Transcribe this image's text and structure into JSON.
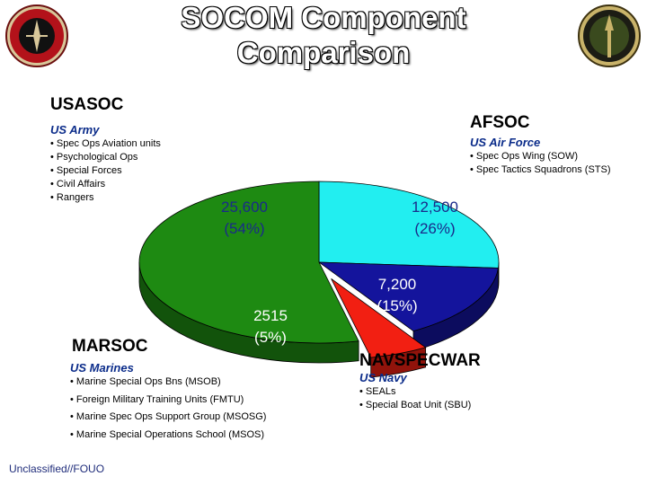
{
  "title_line1": "SOCOM Component",
  "title_line2": "Comparison",
  "left_seal_icon": "marsoc-emblem",
  "right_seal_icon": "socom-emblem",
  "usasoc": {
    "name": "USASOC",
    "subtitle": "US Army",
    "items": [
      "Spec Ops Aviation units",
      "Psychological Ops",
      "Special Forces",
      "Civil Affairs",
      "Rangers"
    ]
  },
  "afsoc": {
    "name": "AFSOC",
    "subtitle": "US Air Force",
    "items": [
      "Spec Ops Wing (SOW)",
      "Spec Tactics Squadrons (STS)"
    ]
  },
  "marsoc": {
    "name": "MARSOC",
    "subtitle": "US Marines",
    "items": [
      "Marine Special Ops Bns (MSOB)",
      "Foreign Military Training Units (FMTU)",
      "Marine Spec Ops Support Group (MSOSG)",
      "Marine Special Operations School (MSOS)"
    ]
  },
  "navspecwar": {
    "name": "NAVSPECWAR",
    "subtitle": "US Navy",
    "items": [
      "SEALs",
      "Special Boat Unit (SBU)"
    ]
  },
  "footer": "Unclassified//FOUO",
  "chart_data": {
    "type": "pie",
    "slices": [
      {
        "label_value": "12,500",
        "label_pct": "(26%)",
        "value": 12500,
        "percent": 26,
        "color": "#22eef0"
      },
      {
        "label_value": "7,200",
        "label_pct": "(15%)",
        "value": 7200,
        "percent": 15,
        "color": "#14149c"
      },
      {
        "label_value": "2515",
        "label_pct": "(5%)",
        "value": 2515,
        "percent": 5,
        "color": "#f21f12"
      },
      {
        "label_value": "25,600",
        "label_pct": "(54%)",
        "value": 25600,
        "percent": 54,
        "color": "#1e8a12"
      }
    ],
    "three_d": true,
    "exploded_slice": "2515"
  }
}
